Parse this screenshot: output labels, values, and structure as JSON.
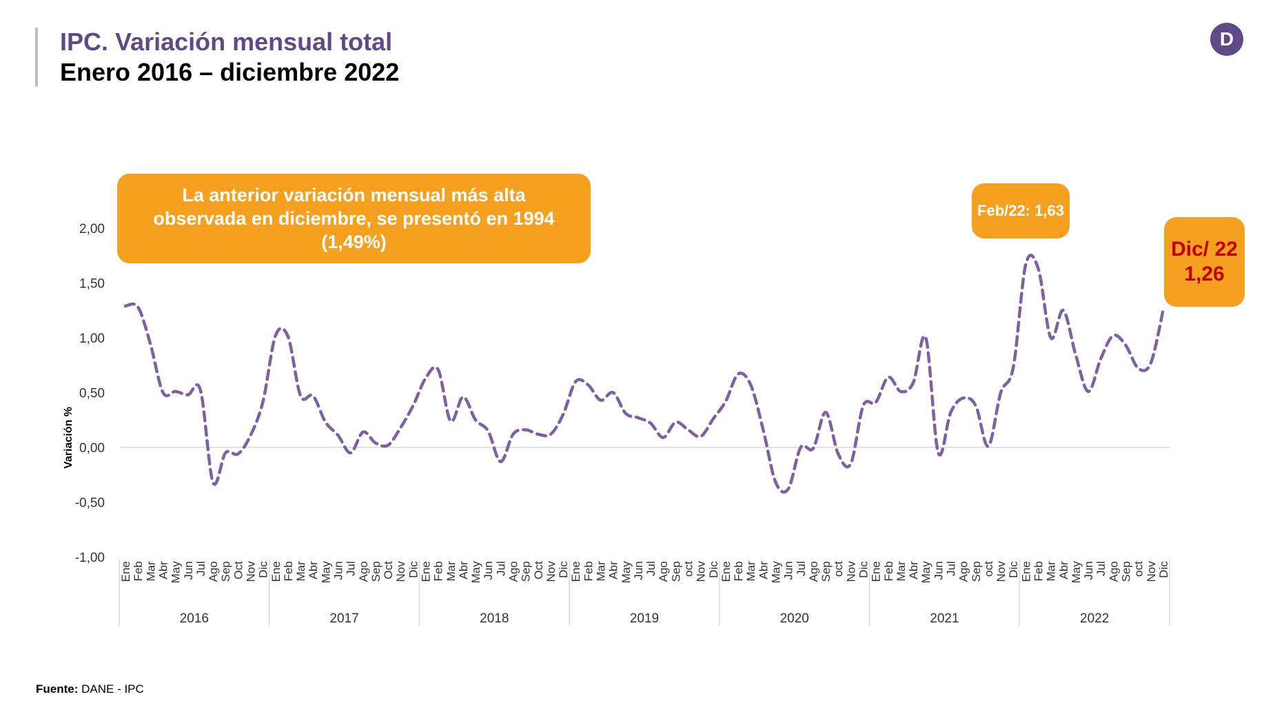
{
  "header": {
    "title": "IPC. Variación mensual total",
    "subtitle": "Enero 2016 – diciembre 2022",
    "logo_letter": "D"
  },
  "annotations": {
    "main": "La anterior variación mensual más alta observada en diciembre, se presentó en 1994 (1,49%)",
    "feb": "Feb/22: 1,63",
    "dic": "Dic/ 22 1,26"
  },
  "footer": {
    "source_label": "Fuente:",
    "source_text": "DANE - IPC"
  },
  "colors": {
    "title": "#5d4a86",
    "line": "#7b62a3",
    "callout": "#f5a01e",
    "callout_red_text": "#c00000"
  },
  "chart_data": {
    "type": "line",
    "title": "",
    "xlabel": "",
    "ylabel": "Variación %",
    "ylim": [
      -1.0,
      2.0
    ],
    "yticks": [
      -1.0,
      -0.5,
      0.0,
      0.5,
      1.0,
      1.5,
      2.0
    ],
    "ytick_labels": [
      "-1,00",
      "-0,50",
      "0,00",
      "0,50",
      "1,00",
      "1,50",
      "2,00"
    ],
    "grid": false,
    "line_style": "dashed",
    "years": [
      "2016",
      "2017",
      "2018",
      "2019",
      "2020",
      "2021",
      "2022"
    ],
    "month_labels": [
      [
        "Ene",
        "Feb",
        "Mar",
        "Abr",
        "May",
        "Jun",
        "Jul",
        "Ago",
        "Sep",
        "Oct",
        "Nov",
        "Dic"
      ],
      [
        "Ene",
        "Feb",
        "Mar",
        "Abr",
        "May",
        "Jun",
        "Jul",
        "Ago",
        "Sep",
        "Oct",
        "Nov",
        "Dic"
      ],
      [
        "Ene",
        "Feb",
        "Mar",
        "Abr",
        "May",
        "Jun",
        "Jul",
        "Ago",
        "Sep",
        "Oct",
        "Nov",
        "Dic"
      ],
      [
        "Ene",
        "Feb",
        "Mar",
        "Abr",
        "May",
        "Jun",
        "Jul",
        "Ago",
        "Sep",
        "oct",
        "Nov",
        "Dic"
      ],
      [
        "Ene",
        "Feb",
        "Mar",
        "Abr",
        "May",
        "Jun",
        "Jul",
        "Ago",
        "Sep",
        "oct",
        "Nov",
        "Dic"
      ],
      [
        "Ene",
        "Feb",
        "Mar",
        "Abr",
        "May",
        "Jun",
        "Jul",
        "Ago",
        "Sep",
        "oct",
        "Nov",
        "Dic"
      ],
      [
        "Ene",
        "Feb",
        "Mar",
        "Abr",
        "May",
        "Jun",
        "Jul",
        "Ago",
        "Sep",
        "oct",
        "Nov",
        "Dic"
      ]
    ],
    "series": [
      {
        "values": [
          1.29,
          1.28,
          0.94,
          0.5,
          0.51,
          0.48,
          0.52,
          -0.32,
          -0.05,
          -0.06,
          0.11,
          0.42,
          1.02,
          1.01,
          0.47,
          0.47,
          0.23,
          0.11,
          -0.05,
          0.14,
          0.04,
          0.02,
          0.18,
          0.38,
          0.63,
          0.71,
          0.24,
          0.46,
          0.25,
          0.15,
          -0.13,
          0.12,
          0.16,
          0.12,
          0.12,
          0.3,
          0.6,
          0.57,
          0.43,
          0.5,
          0.31,
          0.27,
          0.22,
          0.09,
          0.23,
          0.16,
          0.1,
          0.26,
          0.42,
          0.67,
          0.57,
          0.16,
          -0.32,
          -0.38,
          0.0,
          -0.01,
          0.32,
          -0.06,
          -0.15,
          0.38,
          0.41,
          0.64,
          0.51,
          0.59,
          1.0,
          -0.05,
          0.32,
          0.45,
          0.38,
          0.01,
          0.5,
          0.73,
          1.67,
          1.63,
          1.0,
          1.25,
          0.84,
          0.51,
          0.81,
          1.02,
          0.93,
          0.72,
          0.77,
          1.26
        ]
      }
    ]
  }
}
